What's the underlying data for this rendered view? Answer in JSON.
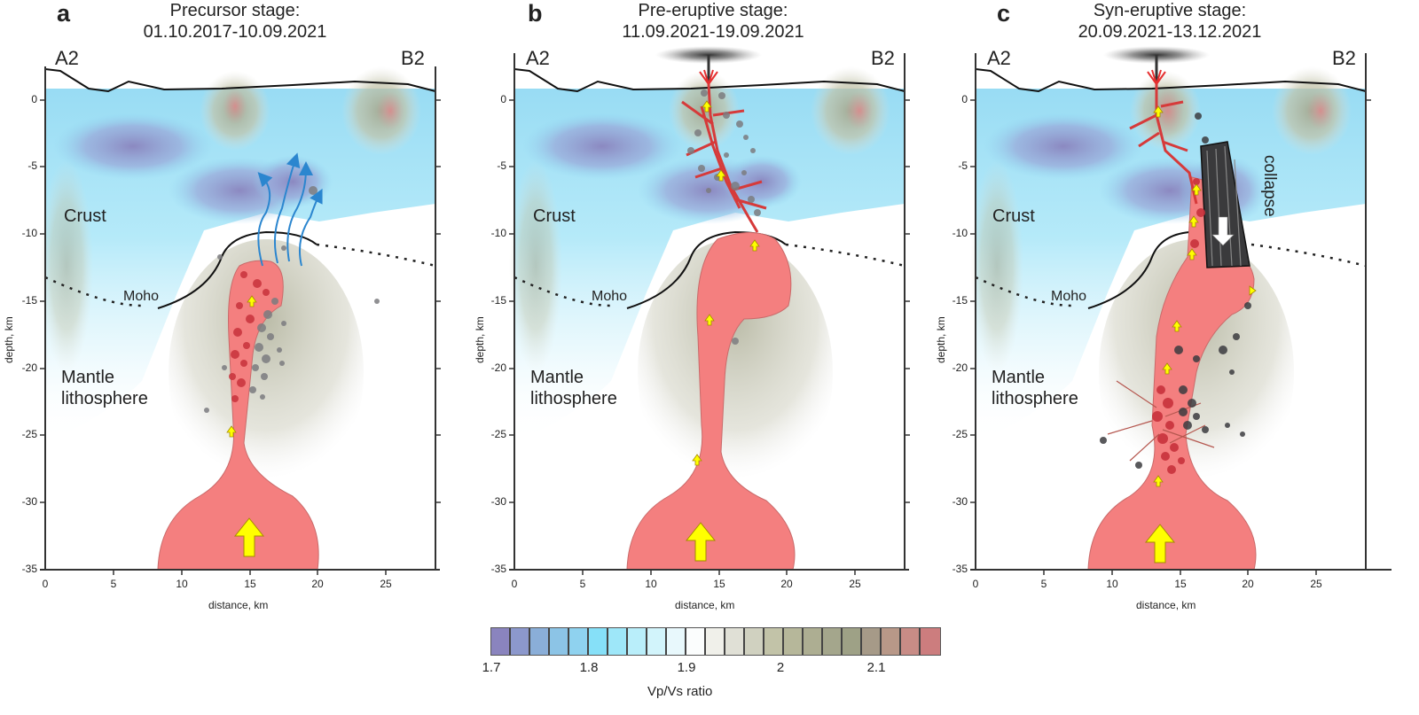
{
  "figure": {
    "panels": [
      {
        "letter": "a",
        "title_line1": "Precursor stage:",
        "title_line2": "01.10.2017-10.09.2021",
        "left_endpoint": "A2",
        "right_endpoint": "B2",
        "crust_label": "Crust",
        "moho_label": "Moho",
        "mantle_label_line1": "Mantle",
        "mantle_label_line2": "lithosphere",
        "ylabel": "depth, km",
        "xlabel": "distance, km"
      },
      {
        "letter": "b",
        "title_line1": "Pre-eruptive stage:",
        "title_line2": "11.09.2021-19.09.2021",
        "left_endpoint": "A2",
        "right_endpoint": "B2",
        "crust_label": "Crust",
        "moho_label": "Moho",
        "mantle_label_line1": "Mantle",
        "mantle_label_line2": "lithosphere",
        "ylabel": "depth, km",
        "xlabel": "distance, km"
      },
      {
        "letter": "c",
        "title_line1": "Syn-eruptive stage:",
        "title_line2": "20.09.2021-13.12.2021",
        "left_endpoint": "A2",
        "right_endpoint": "B2",
        "crust_label": "Crust",
        "moho_label": "Moho",
        "mantle_label_line1": "Mantle",
        "mantle_label_line2": "lithosphere",
        "collapse_label": "collapse",
        "ylabel": "depth, km",
        "xlabel": "distance, km"
      }
    ],
    "y_ticks": [
      "0",
      "-5",
      "-10",
      "-15",
      "-20",
      "-25",
      "-30",
      "-35"
    ],
    "x_ticks": [
      "0",
      "5",
      "10",
      "15",
      "20",
      "25"
    ],
    "colorbar": {
      "title": "Vp/Vs ratio",
      "tick_labels": [
        "1.7",
        "1.8",
        "1.9",
        "2",
        "2.1"
      ],
      "colors": [
        "#8a84be",
        "#8c98cc",
        "#8aaed8",
        "#8cc4e6",
        "#8fd2ef",
        "#86e0f8",
        "#9ee7f9",
        "#b9eefa",
        "#d2f4fb",
        "#e8f8fc",
        "#fbfdfd",
        "#f0f0ea",
        "#e0e0d6",
        "#d0d1c0",
        "#c2c3a8",
        "#b6b79a",
        "#adae92",
        "#a4a68c",
        "#9ea186",
        "#a69a88",
        "#b89888",
        "#c88c86",
        "#cc7d7e"
      ]
    },
    "colors": {
      "magma": "#f47f7f",
      "magma_edge": "#c96a6a",
      "dike": "#d63a3a",
      "hypocenter_grey": "#7c7c80",
      "hypocenter_red": "#c8323c",
      "arrow_yellow": "#ffff00",
      "fluid_arrow": "#2b86cf",
      "low_vpvs": "#8a84be",
      "high_vpvs": "#cc7d7e"
    }
  },
  "chart_data": {
    "type": "heatmap",
    "title": "Vp/Vs cross-sections A2-B2 at three eruption stages",
    "panels": [
      "a: Precursor stage 01.10.2017-10.09.2021",
      "b: Pre-eruptive stage 11.09.2021-19.09.2021",
      "c: Syn-eruptive stage 20.09.2021-13.12.2021"
    ],
    "xlabel": "distance, km",
    "ylabel": "depth, km",
    "xlim": [
      0,
      29
    ],
    "ylim": [
      -35,
      2
    ],
    "x_ticks": [
      0,
      5,
      10,
      15,
      20,
      25
    ],
    "y_ticks": [
      0,
      -5,
      -10,
      -15,
      -20,
      -25,
      -30,
      -35
    ],
    "colorbar": {
      "label": "Vp/Vs ratio",
      "range": [
        1.7,
        2.16
      ],
      "ticks": [
        1.7,
        1.8,
        1.9,
        2.0,
        2.1
      ],
      "levels": 23
    },
    "annotations": [
      "Crust",
      "Moho",
      "Mantle lithosphere",
      "collapse",
      "A2",
      "B2"
    ],
    "moho_depth_km": {
      "west": -15.5,
      "east_under_volcano": -10
    }
  }
}
